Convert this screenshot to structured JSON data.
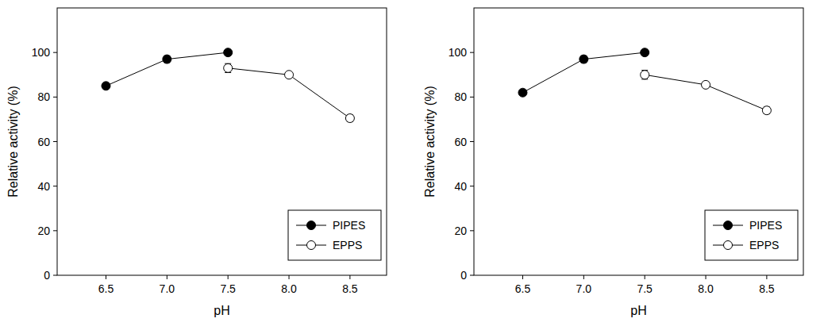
{
  "chart_data": [
    {
      "type": "line",
      "x_label": "pH",
      "y_label": "Relative activity (%)",
      "xlim": [
        6.1,
        8.8
      ],
      "ylim": [
        0,
        120
      ],
      "xticks": [
        6.5,
        {
          "value": 7,
          "label": "7.0"
        },
        7.5,
        {
          "value": 8,
          "label": "8.0"
        },
        8.5
      ],
      "yticks": [
        0,
        20,
        40,
        60,
        80,
        100
      ],
      "legend": "lower right",
      "series": [
        {
          "name": "PIPES",
          "color": "#000000",
          "marker": "filled-circle",
          "x": [
            6.5,
            7.0,
            7.5
          ],
          "values": [
            85,
            97,
            100
          ],
          "errors": [
            0.5,
            1.5,
            0.5
          ]
        },
        {
          "name": "EPPS",
          "color": "#000000",
          "marker": "open-circle",
          "x": [
            7.5,
            8.0,
            8.5
          ],
          "values": [
            93,
            90,
            70.5
          ],
          "errors": [
            2,
            1,
            1.5
          ]
        }
      ]
    },
    {
      "type": "line",
      "x_label": "pH",
      "y_label": "Relative activity (%)",
      "xlim": [
        6.1,
        8.8
      ],
      "ylim": [
        0,
        120
      ],
      "xticks": [
        6.5,
        {
          "value": 7,
          "label": "7.0"
        },
        7.5,
        {
          "value": 8,
          "label": "8.0"
        },
        8.5
      ],
      "yticks": [
        0,
        20,
        40,
        60,
        80,
        100
      ],
      "legend": "lower right",
      "series": [
        {
          "name": "PIPES",
          "color": "#000000",
          "marker": "filled-circle",
          "x": [
            6.5,
            7.0,
            7.5
          ],
          "values": [
            82,
            97,
            100
          ],
          "errors": [
            0.5,
            1.5,
            0.5
          ]
        },
        {
          "name": "EPPS",
          "color": "#000000",
          "marker": "open-circle",
          "x": [
            7.5,
            8.0,
            8.5
          ],
          "values": [
            90,
            85.5,
            74
          ],
          "errors": [
            2,
            1,
            1.5
          ]
        }
      ]
    }
  ]
}
